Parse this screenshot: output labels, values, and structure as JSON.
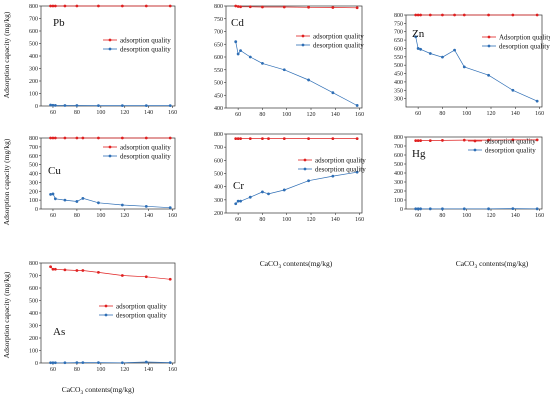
{
  "labels": {
    "ylabel": "Adsorption capacity (mg/kg)",
    "xlabel_base": "CaCO",
    "xlabel_sub": "3",
    "xlabel_tail": " contents(mg/kg)"
  },
  "colors": {
    "adsorption": "#e02020",
    "desorption": "#2e6eb5"
  },
  "chart_data": [
    {
      "type": "line",
      "element": "Pb",
      "x": [
        58,
        60,
        62,
        70,
        80,
        98,
        118,
        138,
        158
      ],
      "ylim": [
        0,
        800
      ],
      "yticks": [
        0,
        100,
        200,
        300,
        400,
        500,
        600,
        700,
        800
      ],
      "series": [
        {
          "name": "adsorption quality",
          "values": [
            800,
            800,
            800,
            800,
            800,
            800,
            800,
            800,
            800
          ]
        },
        {
          "name": "desorption quality",
          "values": [
            8,
            6,
            5,
            4,
            4,
            3,
            3,
            3,
            3
          ]
        }
      ]
    },
    {
      "type": "line",
      "element": "Cd",
      "x": [
        58,
        60,
        62,
        70,
        80,
        98,
        118,
        138,
        158
      ],
      "ylim": [
        400,
        800
      ],
      "yticks": [
        400,
        450,
        500,
        550,
        600,
        650,
        700,
        750,
        800
      ],
      "series": [
        {
          "name": "adsorption quality",
          "values": [
            800,
            798,
            797,
            797,
            796,
            796,
            795,
            794,
            793
          ]
        },
        {
          "name": "desorption quality",
          "values": [
            660,
            612,
            625,
            600,
            575,
            550,
            510,
            460,
            410
          ]
        }
      ]
    },
    {
      "type": "line",
      "element": "Zn",
      "x": [
        58,
        60,
        62,
        70,
        80,
        90,
        98,
        118,
        138,
        158
      ],
      "ylim": [
        250,
        800
      ],
      "yticks": [
        300,
        350,
        400,
        450,
        500,
        550,
        600,
        650,
        700,
        750,
        800
      ],
      "series": [
        {
          "name": "Adsorption quality",
          "values": [
            800,
            800,
            800,
            800,
            800,
            800,
            800,
            800,
            800,
            800
          ]
        },
        {
          "name": "desorption quality",
          "values": [
            670,
            600,
            595,
            570,
            548,
            590,
            490,
            440,
            350,
            285
          ]
        }
      ]
    },
    {
      "type": "line",
      "element": "Cu",
      "x": [
        58,
        60,
        62,
        70,
        80,
        85,
        98,
        118,
        138,
        158
      ],
      "ylim": [
        0,
        800
      ],
      "yticks": [
        0,
        100,
        200,
        300,
        400,
        500,
        600,
        700,
        800
      ],
      "series": [
        {
          "name": "adsorption quality",
          "values": [
            800,
            800,
            800,
            800,
            800,
            800,
            800,
            800,
            800,
            800
          ]
        },
        {
          "name": "desorption quality",
          "values": [
            165,
            170,
            115,
            100,
            85,
            120,
            70,
            45,
            30,
            15
          ]
        }
      ]
    },
    {
      "type": "line",
      "element": "Cr",
      "x": [
        58,
        60,
        62,
        70,
        80,
        85,
        98,
        118,
        138,
        158
      ],
      "ylim": [
        200,
        800
      ],
      "yticks": [
        200,
        300,
        400,
        500,
        600,
        700,
        800
      ],
      "series": [
        {
          "name": "adsorption quality",
          "values": [
            765,
            765,
            765,
            765,
            765,
            765,
            765,
            765,
            765,
            765
          ]
        },
        {
          "name": "desorption quality",
          "values": [
            270,
            290,
            290,
            320,
            360,
            345,
            375,
            445,
            480,
            510
          ]
        }
      ]
    },
    {
      "type": "line",
      "element": "Hg",
      "x": [
        58,
        60,
        62,
        70,
        80,
        98,
        118,
        138,
        158
      ],
      "ylim": [
        0,
        800
      ],
      "yticks": [
        0,
        100,
        200,
        300,
        400,
        500,
        600,
        700,
        800
      ],
      "series": [
        {
          "name": "adsorption quality",
          "values": [
            760,
            760,
            760,
            760,
            762,
            765,
            765,
            768,
            768
          ]
        },
        {
          "name": "desorption quality",
          "values": [
            2,
            2,
            2,
            2,
            2,
            2,
            2,
            4,
            2
          ]
        }
      ]
    },
    {
      "type": "line",
      "element": "As",
      "x": [
        58,
        60,
        62,
        70,
        80,
        85,
        98,
        118,
        138,
        158
      ],
      "ylim": [
        0,
        800
      ],
      "yticks": [
        0,
        100,
        200,
        300,
        400,
        500,
        600,
        700,
        800
      ],
      "series": [
        {
          "name": "adsorption quality",
          "values": [
            770,
            750,
            750,
            745,
            740,
            740,
            725,
            700,
            690,
            670
          ]
        },
        {
          "name": "desorption quality",
          "values": [
            2,
            2,
            2,
            2,
            3,
            3,
            3,
            2,
            8,
            3
          ]
        }
      ]
    }
  ]
}
